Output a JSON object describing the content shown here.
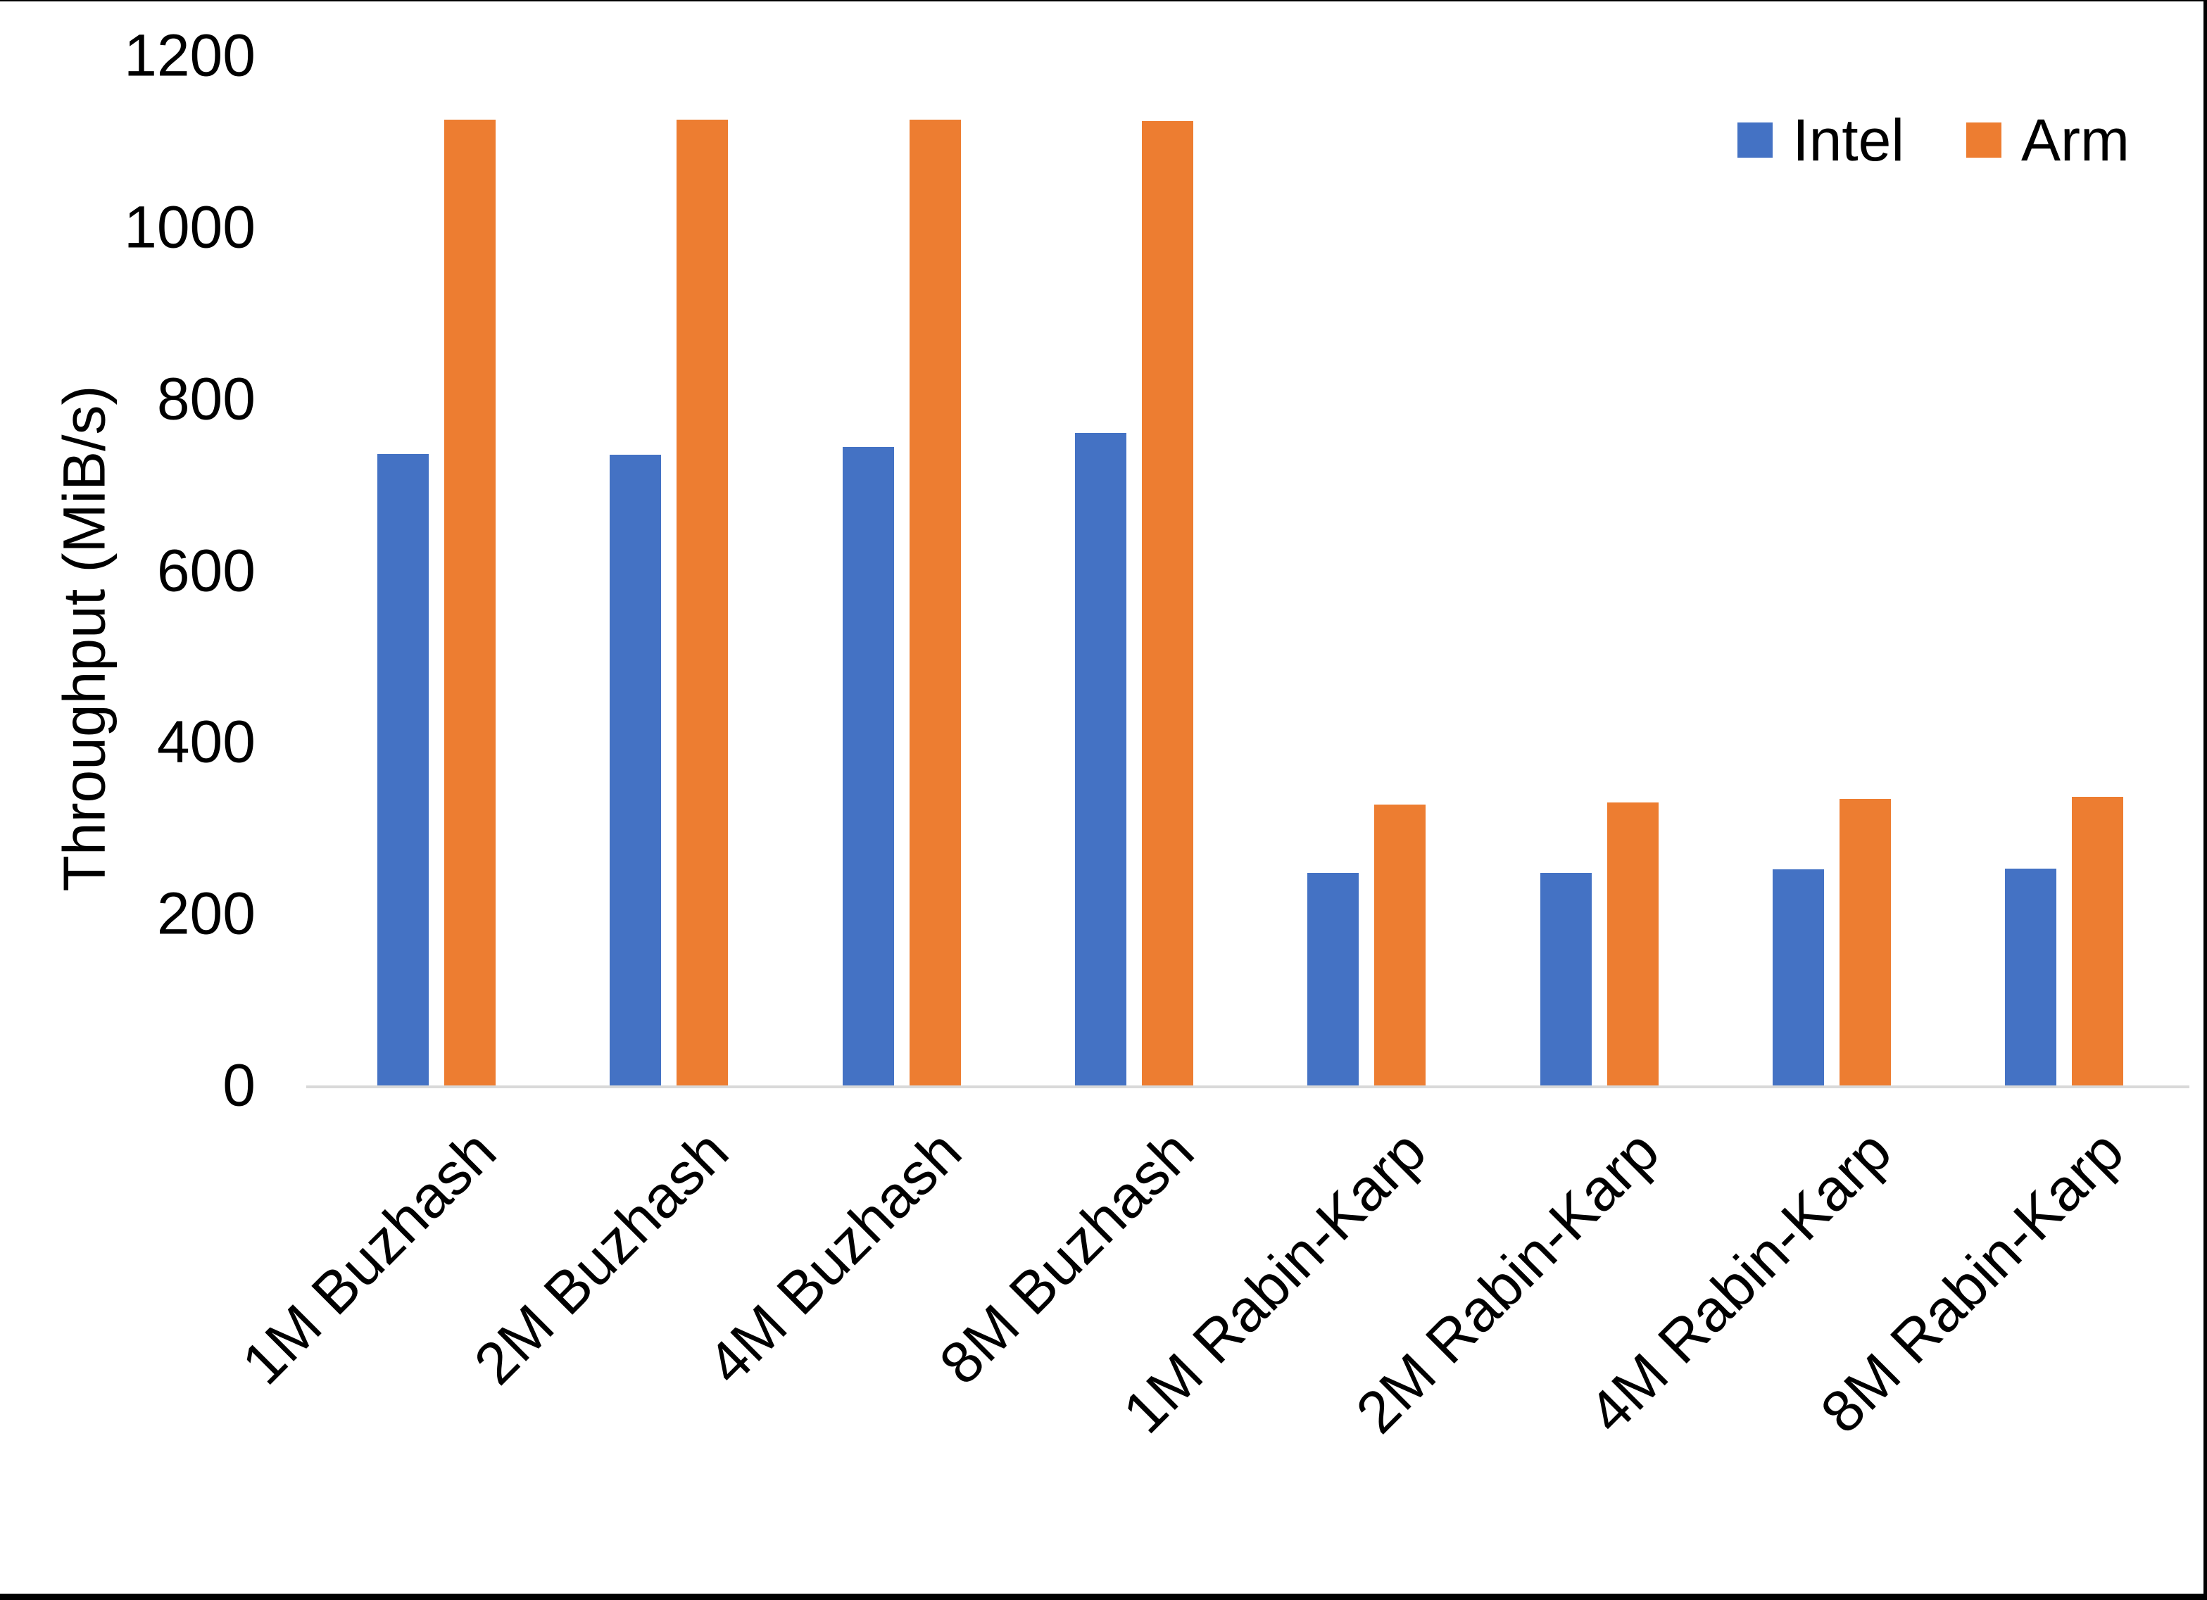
{
  "chart_data": {
    "type": "bar",
    "title": "",
    "xlabel": "",
    "ylabel": "Throughput (MiB/s)",
    "ylim": [
      0,
      1200
    ],
    "yticks": [
      0,
      200,
      400,
      600,
      800,
      1000,
      1200
    ],
    "grid": false,
    "legend_position": "top-right",
    "categories": [
      "1M Buzhash",
      "2M Buzhash",
      "4M Buzhash",
      "8M Buzhash",
      "1M Rabin-Karp",
      "2M Rabin-Karp",
      "4M Rabin-Karp",
      "8M Rabin-Karp"
    ],
    "series": [
      {
        "name": "Intel",
        "color": "#4472C4",
        "values": [
          736,
          735,
          744,
          760,
          248,
          248,
          252,
          253
        ]
      },
      {
        "name": "Arm",
        "color": "#ED7D31",
        "values": [
          1125,
          1125,
          1125,
          1124,
          327,
          330,
          334,
          336
        ]
      }
    ]
  },
  "colors": {
    "axis_line": "#d9d9d9",
    "text": "#000000",
    "frame": "#000000",
    "background": "#ffffff"
  }
}
